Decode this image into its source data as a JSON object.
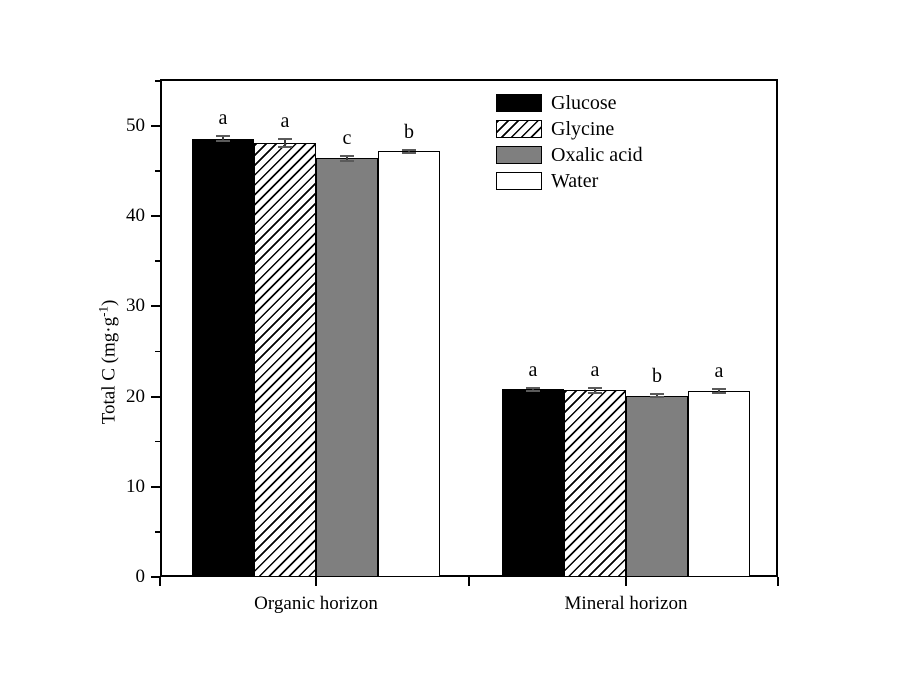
{
  "chart_data": {
    "type": "bar",
    "title": "",
    "xlabel": "",
    "ylabel": "Total C (mg·g⁻¹)",
    "ylabel_parts": {
      "prefix": "Total C (mg·g",
      "sup": "-1",
      "suffix": ")"
    },
    "categories": [
      "Organic horizon",
      "Mineral horizon"
    ],
    "series": [
      {
        "name": "Glucose",
        "fill": "black",
        "values": [
          48.6,
          20.8
        ],
        "errors": [
          0.25,
          0.2
        ],
        "letters": [
          "a",
          "a"
        ]
      },
      {
        "name": "Glycine",
        "fill": "hatch",
        "values": [
          48.1,
          20.7
        ],
        "errors": [
          0.45,
          0.25
        ],
        "letters": [
          "a",
          "a"
        ]
      },
      {
        "name": "Oxalic acid",
        "fill": "gray",
        "values": [
          46.4,
          20.1
        ],
        "errors": [
          0.3,
          0.2
        ],
        "letters": [
          "c",
          "b"
        ]
      },
      {
        "name": "Water",
        "fill": "white",
        "values": [
          47.2,
          20.6
        ],
        "errors": [
          0.15,
          0.25
        ],
        "letters": [
          "b",
          "a"
        ]
      }
    ],
    "ylim": [
      0,
      55.2
    ],
    "yticks": [
      0,
      10,
      20,
      30,
      40,
      50
    ],
    "minor_tick_step": 5,
    "grid": false,
    "legend_position": "top-right-inside",
    "colors": {
      "bar_black": "#000000",
      "bar_gray": "#7f7f7f",
      "bar_white": "#ffffff",
      "hatch_fg": "#000000",
      "frame": "#000000"
    }
  }
}
